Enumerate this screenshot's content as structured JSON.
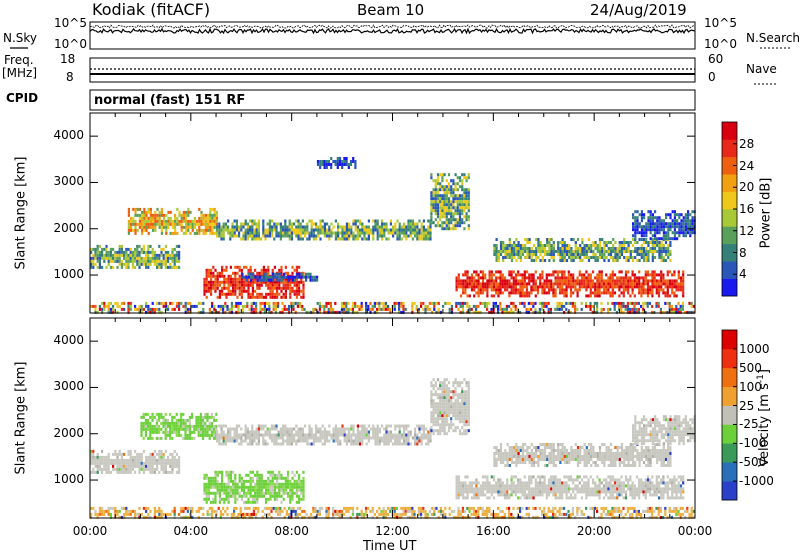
{
  "header": {
    "station": "Kodiak (fitACF)",
    "beam": "Beam 10",
    "date": "24/Aug/2019"
  },
  "panels": {
    "nsky_label": "N.Sky",
    "nsearch_label": "N.Search",
    "nsky_ticks": [
      "10^5",
      "10^0"
    ],
    "nsearch_ticks": [
      "10^5",
      "10^0"
    ],
    "freq_label": "Freq.",
    "freq_unit": "[MHz]",
    "freq_ticks": [
      "18",
      "8"
    ],
    "nave_label": "Nave",
    "nave_ticks": [
      "60",
      "0"
    ],
    "cpid_label": "CPID",
    "cpid_text": "normal (fast) 151 RF"
  },
  "colorbars": {
    "power": {
      "label": "Power [dB]",
      "ticks": [
        "28",
        "24",
        "20",
        "16",
        "12",
        "8",
        "4"
      ],
      "colors": [
        "#1a1aee",
        "#2a56b8",
        "#36807a",
        "#5aa05a",
        "#a8c838",
        "#eec81a",
        "#f0a010",
        "#ee6010",
        "#e82818",
        "#d80010"
      ]
    },
    "velocity": {
      "label": "Velocity [m s",
      "label_sup": "-1",
      "label_end": "]",
      "ticks": [
        "1000",
        "500",
        "100",
        "25",
        "-25",
        "-100",
        "-500",
        "-1000"
      ],
      "colors": [
        "#2a40c8",
        "#2a70b8",
        "#3a9a5a",
        "#6cd03a",
        "#c0c0b8",
        "#eea030",
        "#ee7010",
        "#ee3010",
        "#dd0000"
      ]
    }
  },
  "chart_data": [
    {
      "type": "heatmap",
      "title": "Power",
      "ylabel": "Slant Range [km]",
      "xlabel": "Time UT",
      "xlim": [
        "00:00",
        "24:00"
      ],
      "ylim": [
        180,
        4500
      ],
      "yticks": [
        "1000",
        "2000",
        "3000",
        "4000"
      ],
      "xticks": [
        "00:00",
        "04:00",
        "08:00",
        "12:00",
        "16:00",
        "20:00",
        "00:00"
      ],
      "bands": [
        {
          "t0": 0.0,
          "t1": 24.0,
          "r0": 200,
          "r1": 420,
          "level": "mixed"
        },
        {
          "t0": 0.0,
          "t1": 3.5,
          "r0": 1150,
          "r1": 1650,
          "level": "mid"
        },
        {
          "t0": 1.5,
          "t1": 5.0,
          "r0": 1900,
          "r1": 2450,
          "level": "mid-high"
        },
        {
          "t0": 4.5,
          "t1": 8.5,
          "r0": 550,
          "r1": 1200,
          "level": "high"
        },
        {
          "t0": 6.0,
          "t1": 9.0,
          "r0": 900,
          "r1": 1050,
          "level": "low"
        },
        {
          "t0": 5.0,
          "t1": 13.5,
          "r0": 1750,
          "r1": 2200,
          "level": "mid"
        },
        {
          "t0": 9.0,
          "t1": 10.5,
          "r0": 3350,
          "r1": 3550,
          "level": "low"
        },
        {
          "t0": 13.5,
          "t1": 15.0,
          "r0": 2000,
          "r1": 3200,
          "level": "mid"
        },
        {
          "t0": 14.5,
          "t1": 23.5,
          "r0": 550,
          "r1": 1100,
          "level": "high"
        },
        {
          "t0": 16.0,
          "t1": 23.0,
          "r0": 1300,
          "r1": 1800,
          "level": "mid"
        },
        {
          "t0": 21.5,
          "t1": 24.0,
          "r0": 1800,
          "r1": 2400,
          "level": "low"
        }
      ]
    },
    {
      "type": "heatmap",
      "title": "Velocity",
      "ylabel": "Slant Range [km]",
      "xlabel": "Time UT",
      "xlim": [
        "00:00",
        "24:00"
      ],
      "ylim": [
        180,
        4500
      ],
      "yticks": [
        "1000",
        "2000",
        "3000",
        "4000"
      ],
      "xticks": [
        "00:00",
        "04:00",
        "08:00",
        "12:00",
        "16:00",
        "20:00",
        "00:00"
      ],
      "bands": [
        {
          "t0": 0.0,
          "t1": 24.0,
          "r0": 200,
          "r1": 420,
          "level": "mixed-orange"
        },
        {
          "t0": 0.0,
          "t1": 3.5,
          "r0": 1150,
          "r1": 1650,
          "level": "gray"
        },
        {
          "t0": 2.0,
          "t1": 5.0,
          "r0": 1900,
          "r1": 2450,
          "level": "green"
        },
        {
          "t0": 4.5,
          "t1": 8.5,
          "r0": 550,
          "r1": 1200,
          "level": "green"
        },
        {
          "t0": 5.0,
          "t1": 13.5,
          "r0": 1750,
          "r1": 2200,
          "level": "gray"
        },
        {
          "t0": 13.5,
          "t1": 15.0,
          "r0": 2000,
          "r1": 3200,
          "level": "gray"
        },
        {
          "t0": 14.5,
          "t1": 23.5,
          "r0": 600,
          "r1": 1100,
          "level": "gray"
        },
        {
          "t0": 16.0,
          "t1": 23.0,
          "r0": 1300,
          "r1": 1800,
          "level": "gray"
        },
        {
          "t0": 21.5,
          "t1": 24.0,
          "r0": 1800,
          "r1": 2400,
          "level": "gray"
        }
      ]
    }
  ]
}
